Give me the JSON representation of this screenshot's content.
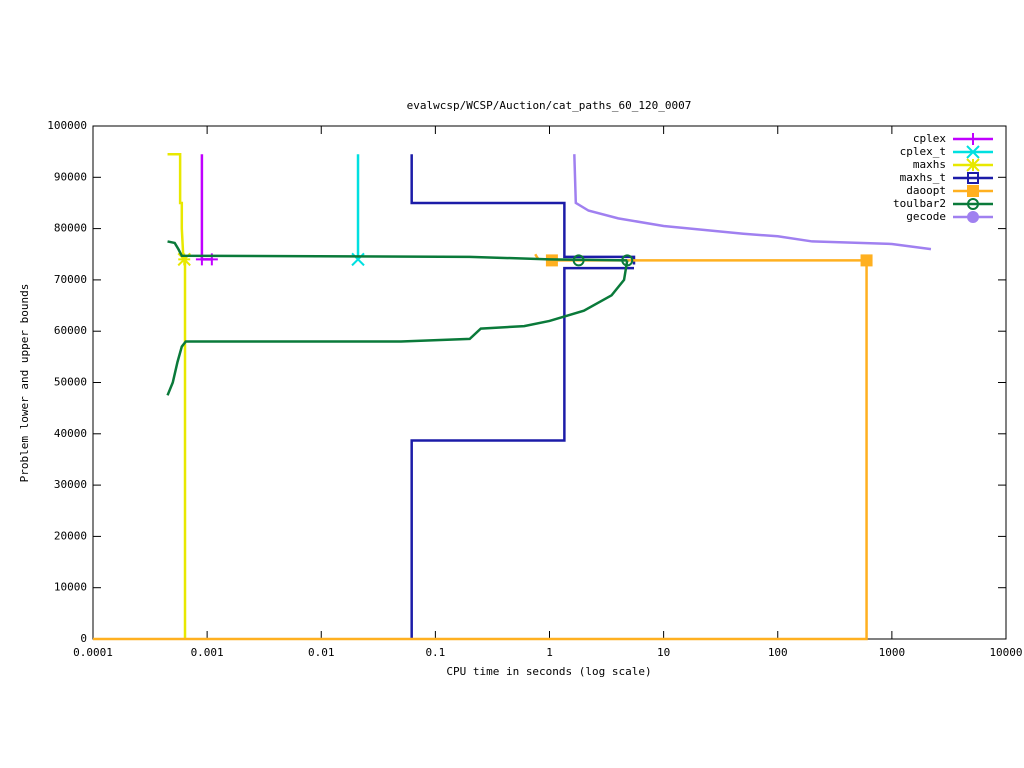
{
  "chart_data": {
    "type": "line",
    "title": "evalwcsp/WCSP/Auction/cat_paths_60_120_0007",
    "x_label": "CPU time in seconds (log scale)",
    "y_label": "Problem lower and upper bounds",
    "xscale": "log",
    "xlim": [
      0.0001,
      10000
    ],
    "ylim": [
      0,
      100000
    ],
    "xticks": [
      0.0001,
      0.001,
      0.01,
      0.1,
      1,
      10,
      100,
      1000,
      10000
    ],
    "yticks": [
      0,
      10000,
      20000,
      30000,
      40000,
      50000,
      60000,
      70000,
      80000,
      90000,
      100000
    ],
    "legend": "top-right",
    "series": [
      {
        "name": "cplex",
        "color": "#c000ff",
        "marker": "plus",
        "x": [
          0.0009,
          0.0009,
          0.0011
        ],
        "values": [
          94500,
          74000,
          74000
        ],
        "marker_x": [
          0.0009,
          0.0011
        ],
        "marker_values": [
          74000,
          74000
        ]
      },
      {
        "name": "cplex_t",
        "color": "#00e0e0",
        "marker": "cross",
        "x": [
          0.021,
          0.021
        ],
        "values": [
          94500,
          74000
        ],
        "marker_x": [
          0.021
        ],
        "marker_values": [
          74000
        ]
      },
      {
        "name": "maxhs",
        "color": "#e8e800",
        "marker": "star",
        "x": [
          0.00045,
          0.00058,
          0.00058,
          0.0006,
          0.0006,
          0.00062,
          0.00064,
          0.00064
        ],
        "values": [
          94500,
          94500,
          85000,
          85000,
          80000,
          74000,
          74000,
          0
        ],
        "marker_x": [
          0.00063
        ],
        "marker_values": [
          74000
        ]
      },
      {
        "name": "maxhs_t",
        "color": "#1c1ca8",
        "marker": "box",
        "x": [
          0.062,
          0.062,
          1.35,
          1.35,
          5.5,
          5.5,
          null,
          0.062,
          0.062,
          1.35,
          1.35,
          5.5
        ],
        "values": [
          94500,
          85000,
          85000,
          74500,
          74500,
          73000,
          null,
          0,
          38700,
          38700,
          72300,
          72300
        ],
        "marker_x": [],
        "marker_values": []
      },
      {
        "name": "daoopt",
        "color": "#ffb020",
        "marker": "filled-box",
        "x": [
          0.0001,
          600,
          600,
          1.05,
          null,
          0.75,
          0.8
        ],
        "values": [
          0,
          0,
          73800,
          73800,
          null,
          75000,
          74000
        ],
        "marker_x": [
          1.05,
          600
        ],
        "marker_values": [
          73800,
          73800
        ]
      },
      {
        "name": "toulbar2",
        "color": "#0a7a3a",
        "marker": "circle",
        "x": [
          0.00045,
          0.00052,
          0.00056,
          0.0006,
          0.2,
          1,
          4.8,
          null,
          0.00045,
          0.0005,
          0.00055,
          0.0006,
          0.00065,
          0.05,
          0.2,
          0.25,
          0.6,
          1,
          2,
          3.5,
          4.5,
          4.8
        ],
        "values": [
          77500,
          77200,
          76000,
          74700,
          74500,
          74000,
          73800,
          null,
          47500,
          50000,
          54000,
          57000,
          58000,
          58000,
          58500,
          60500,
          61000,
          62000,
          64000,
          67000,
          70000,
          73800
        ],
        "marker_x": [
          1.8,
          4.8
        ],
        "marker_values": [
          73800,
          73800
        ]
      },
      {
        "name": "gecode",
        "color": "#a080f0",
        "marker": "filled-circle",
        "x": [
          1.65,
          1.7,
          2.2,
          4,
          10,
          50,
          100,
          200,
          1000,
          2200
        ],
        "values": [
          94500,
          85000,
          83500,
          82000,
          80500,
          79000,
          78500,
          77500,
          77000,
          76000
        ],
        "marker_x": [],
        "marker_values": []
      }
    ]
  }
}
